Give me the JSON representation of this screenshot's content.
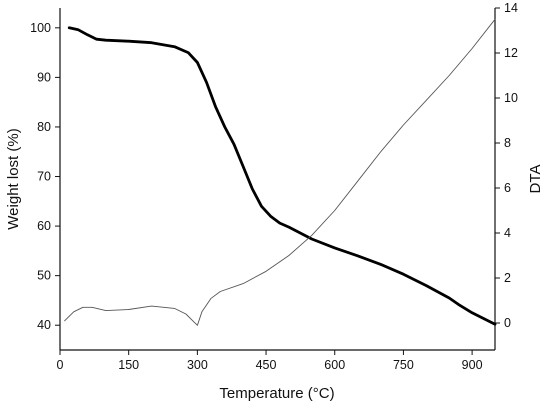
{
  "chart_data": {
    "type": "line",
    "title": "",
    "xlabel": "Temperature (°C)",
    "ylabel_left": "Weight lost (%)",
    "ylabel_right": "DTA",
    "xlim": [
      0,
      950
    ],
    "ylim_left": [
      35,
      104
    ],
    "ylim_right": [
      -1.2,
      14
    ],
    "x_ticks": [
      0,
      150,
      300,
      450,
      600,
      750,
      900
    ],
    "y_left_ticks": [
      40,
      50,
      60,
      70,
      80,
      90,
      100
    ],
    "y_right_ticks": [
      0,
      2,
      4,
      6,
      8,
      10,
      12,
      14
    ],
    "grid": false,
    "legend": "none",
    "series": [
      {
        "axis": "left",
        "style": "solid-bold",
        "color": "#000000",
        "x": [
          20,
          40,
          60,
          80,
          100,
          150,
          200,
          250,
          280,
          300,
          320,
          340,
          360,
          380,
          400,
          420,
          440,
          460,
          480,
          500,
          550,
          600,
          650,
          700,
          750,
          800,
          850,
          870,
          900,
          950
        ],
        "y": [
          100,
          99.6,
          98.6,
          97.7,
          97.5,
          97.3,
          97,
          96.2,
          95,
          93,
          89,
          84,
          80,
          76.5,
          72,
          67.5,
          64,
          62,
          60.6,
          59.8,
          57.4,
          55.6,
          54,
          52.3,
          50.3,
          48,
          45.5,
          44.2,
          42.5,
          40.2
        ]
      },
      {
        "axis": "right",
        "style": "thin",
        "color": "#555555",
        "x": [
          10,
          30,
          50,
          70,
          100,
          150,
          200,
          250,
          275,
          290,
          300,
          310,
          330,
          350,
          400,
          450,
          500,
          550,
          600,
          650,
          700,
          750,
          800,
          850,
          900,
          950
        ],
        "y": [
          0.1,
          0.5,
          0.7,
          0.7,
          0.55,
          0.6,
          0.75,
          0.65,
          0.4,
          0.1,
          -0.1,
          0.5,
          1.1,
          1.4,
          1.75,
          2.3,
          3.0,
          3.9,
          5.0,
          6.3,
          7.6,
          8.8,
          9.9,
          11.0,
          12.2,
          13.5
        ]
      }
    ]
  }
}
